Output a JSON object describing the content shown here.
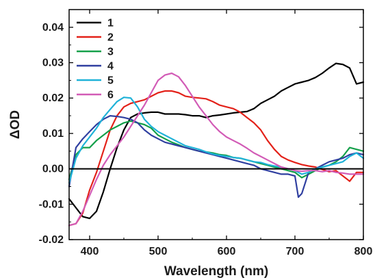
{
  "chart_data": {
    "type": "line",
    "xlabel": "Wavelength  (nm)",
    "ylabel": "ΔOD",
    "xlim": [
      370,
      800
    ],
    "ylim": [
      -0.02,
      0.045
    ],
    "x_ticks": [
      400,
      500,
      600,
      700,
      800
    ],
    "y_ticks": [
      -0.02,
      -0.01,
      0.0,
      0.01,
      0.02,
      0.03,
      0.04
    ],
    "y_tick_labels": [
      "-0.02",
      "-0.01",
      "0.00",
      "0.01",
      "0.02",
      "0.03",
      "0.04"
    ],
    "zero_line": true,
    "grid": false,
    "legend_position": "top-left",
    "series": [
      {
        "name": "1",
        "color": "#000000",
        "x": [
          370,
          380,
          390,
          400,
          410,
          420,
          430,
          440,
          450,
          460,
          470,
          480,
          490,
          500,
          510,
          520,
          530,
          540,
          550,
          560,
          570,
          580,
          590,
          600,
          610,
          620,
          630,
          640,
          650,
          660,
          670,
          680,
          690,
          700,
          710,
          720,
          730,
          740,
          750,
          760,
          770,
          780,
          790,
          800
        ],
        "y": [
          -0.0085,
          -0.011,
          -0.0135,
          -0.014,
          -0.012,
          -0.0065,
          0.0,
          0.006,
          0.011,
          0.0145,
          0.0155,
          0.0158,
          0.016,
          0.016,
          0.0155,
          0.0155,
          0.0155,
          0.0153,
          0.015,
          0.015,
          0.0145,
          0.015,
          0.0152,
          0.0155,
          0.0158,
          0.016,
          0.0162,
          0.017,
          0.0185,
          0.0195,
          0.0205,
          0.022,
          0.023,
          0.024,
          0.0245,
          0.025,
          0.0258,
          0.027,
          0.0285,
          0.0298,
          0.0295,
          0.0285,
          0.024,
          0.0245
        ]
      },
      {
        "name": "2",
        "color": "#e32119",
        "x": [
          370,
          380,
          390,
          400,
          410,
          420,
          430,
          440,
          450,
          460,
          470,
          480,
          490,
          500,
          510,
          520,
          530,
          540,
          550,
          560,
          570,
          580,
          590,
          600,
          610,
          620,
          630,
          640,
          650,
          660,
          670,
          680,
          690,
          700,
          710,
          720,
          730,
          740,
          750,
          760,
          770,
          780,
          790,
          800
        ],
        "y": [
          -0.016,
          -0.0155,
          -0.0125,
          -0.006,
          -0.001,
          0.005,
          0.011,
          0.015,
          0.0175,
          0.0185,
          0.019,
          0.0195,
          0.0205,
          0.0215,
          0.022,
          0.022,
          0.0215,
          0.0205,
          0.0202,
          0.02,
          0.0198,
          0.019,
          0.018,
          0.0175,
          0.017,
          0.016,
          0.0145,
          0.013,
          0.011,
          0.008,
          0.0055,
          0.0035,
          0.0025,
          0.0018,
          0.0012,
          0.0008,
          0.0005,
          -0.0002,
          -0.0008,
          -0.0005,
          -0.002,
          -0.0035,
          -0.001,
          -0.001
        ]
      },
      {
        "name": "3",
        "color": "#14a04a",
        "x": [
          370,
          380,
          390,
          400,
          410,
          420,
          430,
          440,
          450,
          460,
          470,
          480,
          490,
          500,
          510,
          520,
          530,
          540,
          550,
          560,
          570,
          580,
          590,
          600,
          610,
          620,
          630,
          640,
          650,
          660,
          670,
          680,
          690,
          700,
          710,
          720,
          730,
          740,
          750,
          760,
          770,
          780,
          790,
          800
        ],
        "y": [
          -0.003,
          0.004,
          0.006,
          0.006,
          0.008,
          0.0095,
          0.011,
          0.012,
          0.013,
          0.0135,
          0.013,
          0.0125,
          0.0115,
          0.0095,
          0.0085,
          0.0075,
          0.0068,
          0.006,
          0.0055,
          0.005,
          0.0048,
          0.0045,
          0.004,
          0.0038,
          0.0032,
          0.003,
          0.0025,
          0.002,
          0.0015,
          0.001,
          0.0005,
          0.0,
          -0.0005,
          -0.001,
          -0.0025,
          -0.0015,
          -0.0005,
          0.0005,
          0.001,
          0.002,
          0.0035,
          0.006,
          0.0055,
          0.005
        ]
      },
      {
        "name": "4",
        "color": "#2f3fa0",
        "x": [
          370,
          380,
          390,
          400,
          410,
          420,
          430,
          440,
          450,
          460,
          470,
          480,
          490,
          500,
          510,
          520,
          530,
          540,
          550,
          560,
          570,
          580,
          590,
          600,
          610,
          620,
          630,
          640,
          650,
          660,
          670,
          680,
          690,
          700,
          705,
          710,
          720,
          730,
          740,
          750,
          760,
          770,
          780,
          790,
          800
        ],
        "y": [
          -0.005,
          0.006,
          0.0085,
          0.0105,
          0.0125,
          0.014,
          0.015,
          0.0148,
          0.0145,
          0.014,
          0.013,
          0.011,
          0.0095,
          0.0085,
          0.0075,
          0.007,
          0.0065,
          0.006,
          0.0055,
          0.005,
          0.0045,
          0.004,
          0.0035,
          0.003,
          0.0025,
          0.002,
          0.0015,
          0.001,
          0.0,
          -0.0005,
          -0.001,
          -0.0015,
          -0.0015,
          -0.002,
          -0.008,
          -0.007,
          -0.001,
          0.0,
          0.001,
          0.002,
          0.0025,
          0.003,
          0.004,
          0.0045,
          0.004
        ]
      },
      {
        "name": "5",
        "color": "#1fb2d8",
        "x": [
          370,
          380,
          390,
          400,
          410,
          420,
          430,
          440,
          450,
          460,
          470,
          480,
          490,
          500,
          510,
          520,
          530,
          540,
          550,
          560,
          570,
          580,
          590,
          600,
          610,
          620,
          630,
          640,
          650,
          660,
          670,
          680,
          690,
          700,
          710,
          720,
          730,
          740,
          750,
          760,
          770,
          780,
          790,
          800
        ],
        "y": [
          -0.004,
          0.003,
          0.0065,
          0.009,
          0.0115,
          0.0145,
          0.0168,
          0.019,
          0.0202,
          0.02,
          0.0175,
          0.014,
          0.012,
          0.0105,
          0.0095,
          0.0085,
          0.0075,
          0.0065,
          0.006,
          0.0055,
          0.0048,
          0.0042,
          0.0038,
          0.0035,
          0.0032,
          0.003,
          0.0025,
          0.002,
          0.0018,
          0.0012,
          0.0008,
          0.0005,
          0.0,
          -0.0005,
          -0.0015,
          -0.001,
          0.0,
          0.0005,
          0.001,
          0.0015,
          0.002,
          0.0035,
          0.0045,
          0.003
        ]
      },
      {
        "name": "6",
        "color": "#d25bb6",
        "x": [
          370,
          380,
          390,
          400,
          410,
          420,
          430,
          440,
          450,
          460,
          470,
          480,
          490,
          500,
          510,
          520,
          530,
          540,
          550,
          560,
          570,
          580,
          590,
          600,
          610,
          620,
          630,
          640,
          650,
          660,
          670,
          680,
          690,
          700,
          710,
          720,
          730,
          740,
          750,
          760,
          770,
          780,
          790,
          800
        ],
        "y": [
          -0.016,
          -0.0155,
          -0.012,
          -0.0075,
          -0.003,
          0.001,
          0.004,
          0.0065,
          0.009,
          0.012,
          0.015,
          0.018,
          0.0215,
          0.025,
          0.0265,
          0.027,
          0.026,
          0.0235,
          0.0205,
          0.0175,
          0.015,
          0.0125,
          0.0105,
          0.009,
          0.008,
          0.007,
          0.0058,
          0.0045,
          0.0035,
          0.0025,
          0.0015,
          0.0005,
          0.0,
          -0.0005,
          -0.0007,
          -0.0005,
          -0.0005,
          -0.0008,
          -0.0005,
          -0.001,
          -0.0012,
          -0.0015,
          -0.0015,
          -0.0015
        ]
      }
    ]
  }
}
